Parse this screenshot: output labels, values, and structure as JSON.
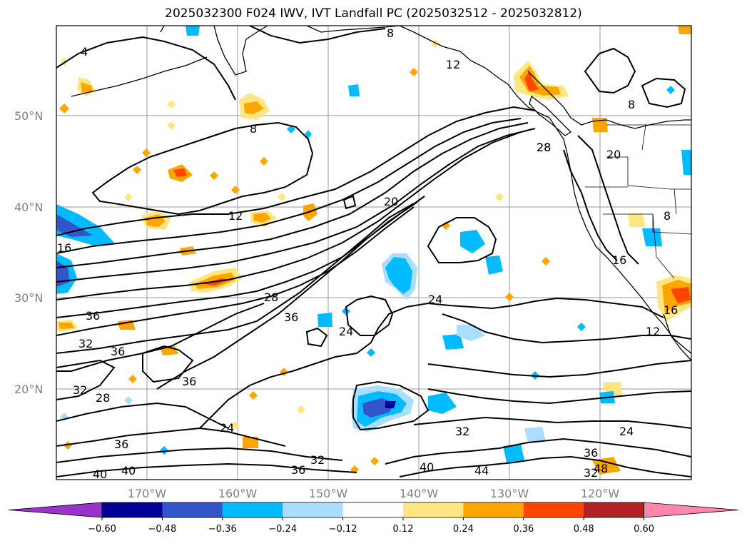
{
  "title": "2025032300 F024 IWV, IVT Landfall PC (2025032512 - 2025032812)",
  "lat_labels": [
    "20°N",
    "30°N",
    "40°N",
    "50°N"
  ],
  "lon_labels": [
    "170°W",
    "160°W",
    "150°W",
    "140°W",
    "130°W",
    "120°W"
  ],
  "colorbar": {
    "ticks": [
      "−0.60",
      "−0.48",
      "−0.36",
      "−0.24",
      "−0.12",
      "0.12",
      "0.24",
      "0.36",
      "0.48",
      "0.60"
    ],
    "colors": [
      "#9933cc",
      "#000099",
      "#3355cc",
      "#00bbff",
      "#aaddff",
      "#ffffff",
      "#ffe680",
      "#ffa500",
      "#ff4500",
      "#b22222",
      "#ff88aa"
    ]
  },
  "contour_labels": [
    {
      "text": "4"
    },
    {
      "text": "8"
    },
    {
      "text": "8"
    },
    {
      "text": "12"
    },
    {
      "text": "12"
    },
    {
      "text": "16"
    },
    {
      "text": "20"
    },
    {
      "text": "28"
    },
    {
      "text": "28"
    },
    {
      "text": "36"
    },
    {
      "text": "36"
    },
    {
      "text": "32"
    },
    {
      "text": "36"
    },
    {
      "text": "32"
    },
    {
      "text": "28"
    },
    {
      "text": "36"
    },
    {
      "text": "24"
    },
    {
      "text": "24"
    },
    {
      "text": "36"
    },
    {
      "text": "40"
    },
    {
      "text": "40"
    },
    {
      "text": "36"
    },
    {
      "text": "32"
    },
    {
      "text": "24"
    },
    {
      "text": "32"
    },
    {
      "text": "40"
    },
    {
      "text": "44"
    },
    {
      "text": "36"
    },
    {
      "text": "24"
    },
    {
      "text": "32"
    },
    {
      "text": "48"
    },
    {
      "text": "28"
    },
    {
      "text": "20"
    },
    {
      "text": "8"
    },
    {
      "text": "16"
    },
    {
      "text": "12"
    },
    {
      "text": "8"
    },
    {
      "text": "16"
    }
  ]
}
